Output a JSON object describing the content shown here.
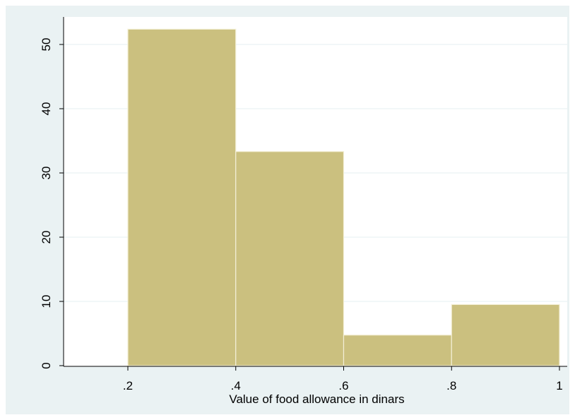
{
  "chart_data": {
    "type": "bar",
    "subtype": "histogram",
    "bins": [
      {
        "x0": 0.2,
        "x1": 0.4,
        "value": 52.38
      },
      {
        "x0": 0.4,
        "x1": 0.6,
        "value": 33.33
      },
      {
        "x0": 0.6,
        "x1": 0.8,
        "value": 4.76
      },
      {
        "x0": 0.8,
        "x1": 1.0,
        "value": 9.52
      }
    ],
    "title": "",
    "xlabel": "Value of food allowance in dinars",
    "ylabel": "",
    "xlim": [
      0.1,
      1.0
    ],
    "ylim": [
      0,
      55
    ],
    "x_ticks": [
      0.2,
      0.4,
      0.6,
      0.8,
      1.0
    ],
    "x_tick_labels": [
      ".2",
      ".4",
      ".6",
      ".8",
      "1"
    ],
    "y_ticks": [
      0,
      10,
      20,
      30,
      40,
      50
    ],
    "y_tick_labels": [
      "0",
      "10",
      "20",
      "30",
      "40",
      "50"
    ],
    "grid": "horizontal",
    "colors": {
      "outer_background": "#eaf2f3",
      "plot_background": "#ffffff",
      "bar_fill": "#cbc07f",
      "bar_edge": "#f3efd6",
      "gridline": "#eaf2f3",
      "axis": "#000000"
    }
  }
}
